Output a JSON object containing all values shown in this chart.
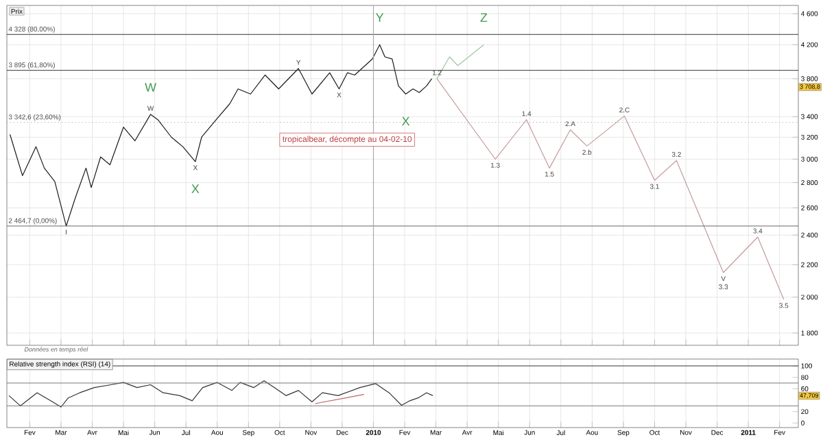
{
  "chart_data": [
    {
      "type": "line",
      "xlim": [
        "2009-01-09",
        "2011-02-19"
      ],
      "ylim": [
        1736,
        4713
      ],
      "log": "y",
      "grid": true,
      "tick_labels": "y",
      "xticks": [
        {
          "value": "2009-02-01",
          "label": null
        },
        {
          "value": "2009-03-01",
          "label": null
        },
        {
          "value": "2009-04-01",
          "label": null
        },
        {
          "value": "2009-05-01",
          "label": null
        },
        {
          "value": "2009-06-01",
          "label": null
        },
        {
          "value": "2009-07-01",
          "label": null
        },
        {
          "value": "2009-08-01",
          "label": null
        },
        {
          "value": "2009-09-01",
          "label": null
        },
        {
          "value": "2009-10-01",
          "label": null
        },
        {
          "value": "2009-11-01",
          "label": null
        },
        {
          "value": "2009-12-01",
          "label": null
        },
        {
          "value": "2010-01-01",
          "label": null
        },
        {
          "value": "2010-02-01",
          "label": null
        },
        {
          "value": "2010-03-01",
          "label": null
        },
        {
          "value": "2010-04-01",
          "label": null
        },
        {
          "value": "2010-05-01",
          "label": null
        },
        {
          "value": "2010-06-01",
          "label": null
        },
        {
          "value": "2010-07-01",
          "label": null
        },
        {
          "value": "2010-08-01",
          "label": null
        },
        {
          "value": "2010-09-01",
          "label": null
        },
        {
          "value": "2010-10-01",
          "label": null
        },
        {
          "value": "2010-11-01",
          "label": null
        },
        {
          "value": "2010-12-01",
          "label": null
        },
        {
          "value": "2011-01-01",
          "label": null
        },
        {
          "value": "2011-02-01",
          "label": null
        }
      ],
      "yticks": [
        {
          "value": 1800,
          "label": "1 800"
        },
        {
          "value": 2000,
          "label": "2 000"
        },
        {
          "value": 2200,
          "label": "2 200"
        },
        {
          "value": 2400,
          "label": "2 400"
        },
        {
          "value": 2600,
          "label": "2 600"
        },
        {
          "value": 2800,
          "label": "2 800"
        },
        {
          "value": 3000,
          "label": "3 000"
        },
        {
          "value": 3200,
          "label": "3 200"
        },
        {
          "value": 3400,
          "label": "3 400"
        },
        {
          "value": 3800,
          "label": "3 800"
        },
        {
          "value": 4200,
          "label": "4 200"
        },
        {
          "value": 4600,
          "label": "4 600"
        }
      ],
      "series": [
        {
          "color": "#1a1a1a",
          "x": [
            "2009-01-12",
            "2009-01-24",
            "2009-02-07",
            "2009-02-15",
            "2009-02-25",
            "2009-03-06",
            "2009-03-15",
            "2009-03-25",
            "2009-03-30",
            "2009-04-09",
            "2009-04-18",
            "2009-05-01",
            "2009-05-12",
            "2009-05-27",
            "2009-06-04",
            "2009-06-17",
            "2009-06-28",
            "2009-07-10",
            "2009-07-16",
            "2009-07-30",
            "2009-08-13",
            "2009-08-21",
            "2009-09-03",
            "2009-09-17",
            "2009-09-30",
            "2009-10-19",
            "2009-11-02",
            "2009-11-19",
            "2009-11-28",
            "2009-12-06",
            "2009-12-13",
            "2009-12-30",
            "2010-01-07",
            "2010-01-12",
            "2010-01-19",
            "2010-01-25",
            "2010-02-02",
            "2010-02-09",
            "2010-02-15",
            "2010-02-22",
            "2010-02-27"
          ],
          "values": [
            3226,
            2858,
            3112,
            2922,
            2809,
            2465,
            2684,
            2922,
            2760,
            3020,
            2951,
            3296,
            3166,
            3422,
            3369,
            3200,
            3112,
            2978,
            3200,
            3369,
            3530,
            3688,
            3633,
            3842,
            3688,
            3916,
            3633,
            3868,
            3688,
            3868,
            3842,
            4027,
            4200,
            4052,
            4027,
            3721,
            3633,
            3688,
            3650,
            3721,
            3800
          ]
        },
        {
          "color": "#c49a9a",
          "x": [
            "2010-03-02",
            "2010-04-28",
            "2010-05-28",
            "2010-06-20",
            "2010-07-10",
            "2010-07-26",
            "2010-09-02",
            "2010-10-01",
            "2010-10-22",
            "2010-12-07",
            "2011-01-10",
            "2011-02-05"
          ],
          "values": [
            3800,
            3000,
            3369,
            2922,
            3270,
            3118,
            3405,
            2819,
            2988,
            2150,
            2386,
            1987
          ]
        },
        {
          "color": "#9cc89c",
          "x": [
            "2010-03-02",
            "2010-03-14",
            "2010-03-22",
            "2010-04-17"
          ],
          "values": [
            3800,
            4052,
            3950,
            4200
          ]
        }
      ],
      "ref_lines": [
        {
          "axis": "y",
          "value": 4328,
          "label": "4 328 (80,00%)",
          "color": "#333333"
        },
        {
          "axis": "y",
          "value": 3895,
          "label": "3 895 (61,80%)",
          "color": "#333333"
        },
        {
          "axis": "y",
          "value": 3342.6,
          "label": "3 342,6 (23,60%)",
          "color": "#999999",
          "line_style": "dotted"
        },
        {
          "axis": "y",
          "value": 2464.7,
          "label": "2 464,7 (0,00%)",
          "color": "#666666"
        },
        {
          "axis": "x",
          "value": "2010-01-01",
          "color": "#aaaaaa"
        }
      ],
      "annotations": [
        {
          "text": "W",
          "x": "2009-05-27",
          "y": 3422
        },
        {
          "text": "X",
          "x": "2009-07-10",
          "y": 2978
        },
        {
          "text": "Y",
          "x": "2010-01-07",
          "y": 4200
        },
        {
          "text": "X",
          "x": "2010-02-02",
          "y": 3633
        },
        {
          "text": "Z",
          "x": "2010-04-17",
          "y": 4200
        },
        {
          "text": "1.2",
          "x": "2010-03-02",
          "y": 3800
        },
        {
          "text": "1.3",
          "x": "2010-04-28",
          "y": 3000
        },
        {
          "text": "1.4",
          "x": "2010-05-28",
          "y": 3369
        },
        {
          "text": "1.5",
          "x": "2010-06-20",
          "y": 2922
        },
        {
          "text": "2.A",
          "x": "2010-07-10",
          "y": 3270
        },
        {
          "text": "2.b",
          "x": "2010-07-26",
          "y": 3118
        },
        {
          "text": "2.C",
          "x": "2010-09-02",
          "y": 3405
        },
        {
          "text": "3.1",
          "x": "2010-10-01",
          "y": 2819
        },
        {
          "text": "3.2",
          "x": "2010-10-22",
          "y": 2988
        },
        {
          "text": "V",
          "x": "2010-12-07",
          "y": 2150
        },
        {
          "text": "3.3",
          "x": "2010-12-07",
          "y": 2150
        },
        {
          "text": "3.4",
          "x": "2011-01-10",
          "y": 2386
        },
        {
          "text": "3.5",
          "x": "2011-02-05",
          "y": 1987
        },
        {
          "text": "I",
          "x": "2009-03-06",
          "y": 2465
        },
        {
          "text": "W",
          "x": "2009-05-27",
          "y": 3422
        },
        {
          "text": "X",
          "x": "2009-07-10",
          "y": 2978
        },
        {
          "text": "Y",
          "x": "2009-10-19",
          "y": 3916
        },
        {
          "text": "X",
          "x": "2009-11-28",
          "y": 3688
        },
        {
          "text": "3 708,8",
          "y": 3708.8
        },
        "Prix",
        "Données en temps réel",
        "tropicalbear, décompte au 04-02-10"
      ]
    },
    {
      "type": "line",
      "title": "Relative strength index (RSI) (14)",
      "xlim": [
        "2009-01-09",
        "2011-02-19"
      ],
      "ylim": [
        -8,
        112
      ],
      "grid": "x",
      "xticks": [
        {
          "value": "2009-02-01",
          "label": "Fev"
        },
        {
          "value": "2009-03-01",
          "label": "Mar"
        },
        {
          "value": "2009-04-01",
          "label": "Avr"
        },
        {
          "value": "2009-05-01",
          "label": "Mai"
        },
        {
          "value": "2009-06-01",
          "label": "Jun"
        },
        {
          "value": "2009-07-01",
          "label": "Jul"
        },
        {
          "value": "2009-08-01",
          "label": "Aou"
        },
        {
          "value": "2009-09-01",
          "label": "Sep"
        },
        {
          "value": "2009-10-01",
          "label": "Oct"
        },
        {
          "value": "2009-11-01",
          "label": "Nov"
        },
        {
          "value": "2009-12-01",
          "label": "Dec"
        },
        {
          "value": "2010-01-01",
          "label": "**2010**"
        },
        {
          "value": "2010-02-01",
          "label": "Fev"
        },
        {
          "value": "2010-03-01",
          "label": "Mar"
        },
        {
          "value": "2010-04-01",
          "label": "Avr"
        },
        {
          "value": "2010-05-01",
          "label": "Mai"
        },
        {
          "value": "2010-06-01",
          "label": "Jun"
        },
        {
          "value": "2010-07-01",
          "label": "Jul"
        },
        {
          "value": "2010-08-01",
          "label": "Aou"
        },
        {
          "value": "2010-09-01",
          "label": "Sep"
        },
        {
          "value": "2010-10-01",
          "label": "Oct"
        },
        {
          "value": "2010-11-01",
          "label": "Nov"
        },
        {
          "value": "2010-12-01",
          "label": "Dec"
        },
        {
          "value": "2011-01-01",
          "label": "**2011**"
        },
        {
          "value": "2011-02-01",
          "label": "Fev"
        }
      ],
      "yticks": [
        0,
        20,
        60,
        80,
        100
      ],
      "series": [
        {
          "color": "#333333",
          "x": [
            "2009-01-11",
            "2009-01-22",
            "2009-02-08",
            "2009-02-21",
            "2009-03-01",
            "2009-03-08",
            "2009-03-19",
            "2009-04-03",
            "2009-04-19",
            "2009-05-01",
            "2009-05-14",
            "2009-05-27",
            "2009-06-09",
            "2009-06-25",
            "2009-07-07",
            "2009-07-17",
            "2009-07-31",
            "2009-08-15",
            "2009-08-23",
            "2009-09-06",
            "2009-09-16",
            "2009-09-26",
            "2009-10-07",
            "2009-10-19",
            "2009-11-02",
            "2009-11-12",
            "2009-11-27",
            "2009-12-18",
            "2010-01-03",
            "2010-01-16",
            "2010-01-28",
            "2010-02-06",
            "2010-02-14",
            "2010-02-22",
            "2010-02-28"
          ],
          "values": [
            48,
            30,
            53,
            39,
            28,
            44,
            53,
            62,
            67,
            71,
            62,
            67,
            53,
            48,
            39,
            62,
            71,
            57,
            71,
            62,
            74,
            62,
            48,
            57,
            37,
            53,
            48,
            62,
            69,
            53,
            31,
            39,
            44,
            53,
            48
          ]
        },
        {
          "color": "#c06060",
          "x": [
            "2009-11-05",
            "2009-12-22"
          ],
          "values": [
            34,
            50
          ]
        }
      ],
      "ref_lines": [
        {
          "axis": "y",
          "value": 70,
          "color": "#777777"
        },
        {
          "axis": "y",
          "value": 30,
          "color": "#777777"
        },
        {
          "axis": "y",
          "value": 100,
          "color": "#333333"
        }
      ],
      "annotations": [
        {
          "text": "47,709",
          "y": 47.709
        }
      ]
    }
  ]
}
